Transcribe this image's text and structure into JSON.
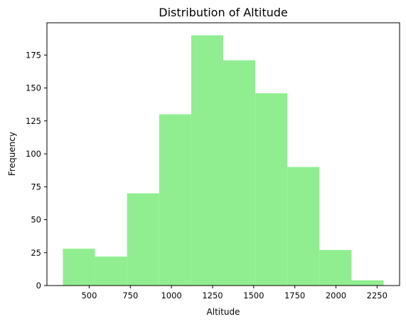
{
  "chart_data": {
    "type": "bar",
    "title": "Distribution of Altitude",
    "xlabel": "Altitude",
    "ylabel": "Frequency",
    "bar_color": "#90ee90",
    "bins": [
      {
        "start": 340,
        "end": 535,
        "count": 28
      },
      {
        "start": 535,
        "end": 730,
        "count": 22
      },
      {
        "start": 730,
        "end": 925,
        "count": 70
      },
      {
        "start": 925,
        "end": 1120,
        "count": 130
      },
      {
        "start": 1120,
        "end": 1315,
        "count": 190
      },
      {
        "start": 1315,
        "end": 1510,
        "count": 171
      },
      {
        "start": 1510,
        "end": 1705,
        "count": 146
      },
      {
        "start": 1705,
        "end": 1900,
        "count": 90
      },
      {
        "start": 1900,
        "end": 2095,
        "count": 27
      },
      {
        "start": 2095,
        "end": 2290,
        "count": 4
      }
    ],
    "xlim": [
      243,
      2387
    ],
    "ylim": [
      0,
      199.5
    ],
    "x_ticks": [
      500,
      750,
      1000,
      1250,
      1500,
      1750,
      2000,
      2250
    ],
    "y_ticks": [
      0,
      25,
      50,
      75,
      100,
      125,
      150,
      175
    ],
    "grid": false,
    "legend": "none"
  }
}
